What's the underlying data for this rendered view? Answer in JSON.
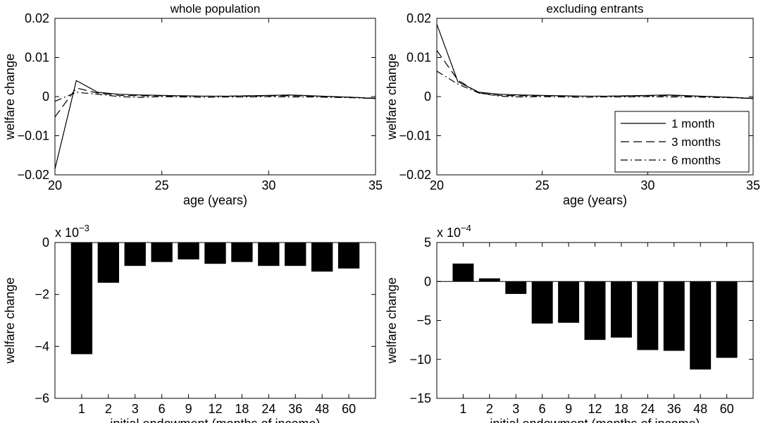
{
  "chart_data": [
    {
      "type": "line",
      "title": "whole population",
      "xlabel": "age (years)",
      "ylabel": "welfare change",
      "xlim": [
        20,
        35
      ],
      "ylim": [
        -0.02,
        0.02
      ],
      "xticks": [
        20,
        25,
        30,
        35
      ],
      "xtick_labels": [
        "20",
        "25",
        "30",
        "35"
      ],
      "yticks": [
        -0.02,
        -0.01,
        0,
        0.01,
        0.02
      ],
      "ytick_labels": [
        "−0.02",
        "−0.01",
        "0",
        "0.01",
        "0.02"
      ],
      "legend": null,
      "x": [
        20,
        21,
        22,
        23,
        24,
        25,
        26,
        27,
        28,
        29,
        30,
        31,
        32,
        33,
        34,
        35
      ],
      "series": [
        {
          "values": [
            -0.0185,
            0.0041,
            0.0011,
            0.0006,
            0.0004,
            0.0003,
            0.0002,
            0.0001,
            0.0001,
            0.0002,
            0.0003,
            0.0004,
            0.0002,
            0.0,
            -0.0002,
            -0.0005
          ],
          "dash": "solid"
        },
        {
          "values": [
            -0.0052,
            0.0022,
            0.0009,
            0.0003,
            0.0002,
            0.0002,
            0.0001,
            0.0001,
            0.0001,
            0.0001,
            0.0002,
            0.0002,
            0.0001,
            0.0,
            -0.0002,
            -0.0004
          ],
          "dash": "dashed"
        },
        {
          "values": [
            -0.0012,
            0.0011,
            0.0006,
            0.0,
            -0.0002,
            0.0,
            -0.0001,
            -0.0002,
            -0.0001,
            -0.0001,
            0.0,
            -0.0001,
            -0.0001,
            -0.0002,
            -0.0003,
            -0.0005
          ],
          "dash": "dashdot"
        }
      ]
    },
    {
      "type": "line",
      "title": "excluding entrants",
      "xlabel": "age (years)",
      "ylabel": "welfare change",
      "xlim": [
        20,
        35
      ],
      "ylim": [
        -0.02,
        0.02
      ],
      "xticks": [
        20,
        25,
        30,
        35
      ],
      "xtick_labels": [
        "20",
        "25",
        "30",
        "35"
      ],
      "yticks": [
        -0.02,
        -0.01,
        0,
        0.01,
        0.02
      ],
      "ytick_labels": [
        "−0.02",
        "−0.01",
        "0",
        "0.01",
        "0.02"
      ],
      "legend": {
        "placement": "bottom-right",
        "entries": [
          "1 month",
          "3 months",
          "6 months"
        ]
      },
      "x": [
        20,
        21,
        22,
        23,
        24,
        25,
        26,
        27,
        28,
        29,
        30,
        31,
        32,
        33,
        34,
        35
      ],
      "series": [
        {
          "name": "1 month",
          "values": [
            0.0185,
            0.0038,
            0.0011,
            0.0006,
            0.0004,
            0.0003,
            0.0002,
            0.0001,
            0.0001,
            0.0002,
            0.0003,
            0.0004,
            0.0002,
            0.0,
            -0.0002,
            -0.0005
          ],
          "dash": "solid"
        },
        {
          "name": "3 months",
          "values": [
            0.0118,
            0.0042,
            0.0009,
            0.0003,
            0.0002,
            0.0002,
            0.0001,
            0.0001,
            0.0001,
            0.0001,
            0.0002,
            0.0002,
            0.0001,
            0.0,
            -0.0002,
            -0.0004
          ],
          "dash": "dashed"
        },
        {
          "name": "6 months",
          "values": [
            0.0065,
            0.0032,
            0.0009,
            0.0001,
            -0.0001,
            0.0,
            -0.0001,
            -0.0002,
            -0.0001,
            -0.0001,
            0.0,
            -0.0001,
            -0.0001,
            -0.0002,
            -0.0003,
            -0.0005
          ],
          "dash": "dashdot"
        }
      ]
    },
    {
      "type": "bar",
      "title": "",
      "xlabel": "initial endowment (months of income)",
      "ylabel": "welfare change",
      "scale_label": {
        "base": "x 10",
        "exponent": "−3"
      },
      "categories": [
        "1",
        "2",
        "3",
        "6",
        "9",
        "12",
        "18",
        "24",
        "36",
        "48",
        "60"
      ],
      "values": [
        -4.3,
        -1.55,
        -0.9,
        -0.75,
        -0.65,
        -0.82,
        -0.75,
        -0.9,
        -0.9,
        -1.12,
        -1.0
      ],
      "ylim": [
        -6,
        0
      ],
      "yticks": [
        -6,
        -4,
        -2,
        0
      ],
      "ytick_labels": [
        "−6",
        "−4",
        "−2",
        "0"
      ],
      "zero_line": false
    },
    {
      "type": "bar",
      "title": "",
      "xlabel": "initial endowment (months of income)",
      "ylabel": "welfare change",
      "scale_label": {
        "base": "x 10",
        "exponent": "−4"
      },
      "categories": [
        "1",
        "2",
        "3",
        "6",
        "9",
        "12",
        "18",
        "24",
        "36",
        "48",
        "60"
      ],
      "values": [
        2.3,
        0.4,
        -1.6,
        -5.4,
        -5.3,
        -7.5,
        -7.2,
        -8.8,
        -8.9,
        -11.3,
        -9.8
      ],
      "ylim": [
        -15,
        5
      ],
      "yticks": [
        -15,
        -10,
        -5,
        0,
        5
      ],
      "ytick_labels": [
        "−15",
        "−10",
        "−5",
        "0",
        "5"
      ],
      "zero_line": true
    }
  ]
}
